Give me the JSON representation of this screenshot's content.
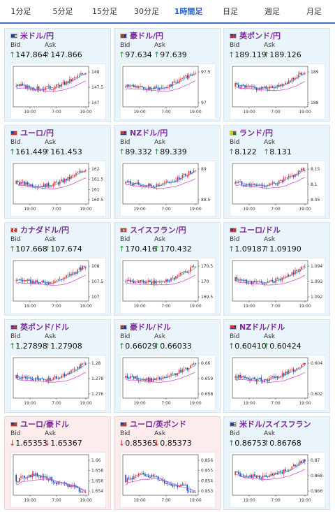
{
  "tabs": [
    {
      "label": "1分足",
      "active": false
    },
    {
      "label": "5分足",
      "active": false
    },
    {
      "label": "15分足",
      "active": false
    },
    {
      "label": "30分足",
      "active": false
    },
    {
      "label": "1時間足",
      "active": true
    },
    {
      "label": "日足",
      "active": false
    },
    {
      "label": "週足",
      "active": false
    },
    {
      "label": "月足",
      "active": false
    }
  ],
  "labels": {
    "bid": "Bid",
    "ask": "Ask"
  },
  "colors": {
    "up": "#2a8a3a",
    "down": "#d0312d",
    "pair": "#7b2b9b",
    "candle_up": "#e8322f",
    "candle_down": "#1a3fb0",
    "ma_short": "#2b9bd8",
    "ma_long": "#d24fd6"
  },
  "cards": [
    {
      "pair": "米ドル/円",
      "flag": "us",
      "bid": "147.864",
      "ask": "147.866",
      "dir": "up",
      "yticks": [
        "148",
        "147.5",
        "147"
      ],
      "xticks": [
        "19:00",
        "7:00",
        "19:00"
      ]
    },
    {
      "pair": "豪ドル/円",
      "flag": "au",
      "bid": "97.634",
      "ask": "97.639",
      "dir": "up",
      "yticks": [
        "97.5",
        "97"
      ],
      "xticks": [
        "19:00",
        "7:00",
        "19:00"
      ]
    },
    {
      "pair": "英ポンド/円",
      "flag": "uk",
      "bid": "189.119",
      "ask": "189.126",
      "dir": "up",
      "yticks": [
        "189",
        "188"
      ],
      "xticks": [
        "19:00",
        "7:00",
        "19:00"
      ]
    },
    {
      "pair": "ユーロ/円",
      "flag": "eu",
      "bid": "161.449",
      "ask": "161.453",
      "dir": "up",
      "yticks": [
        "162",
        "161.5",
        "161",
        "160.5"
      ],
      "xticks": [
        "19:00",
        "7:00",
        "19:00"
      ]
    },
    {
      "pair": "NZドル/円",
      "flag": "nz",
      "bid": "89.332",
      "ask": "89.339",
      "dir": "up",
      "yticks": [
        "89",
        "88.5"
      ],
      "xticks": [
        "19:00",
        "7:00",
        "19:00"
      ]
    },
    {
      "pair": "ランド/円",
      "flag": "za",
      "bid": "8.122",
      "ask": "8.131",
      "dir": "up",
      "yticks": [
        "8.15",
        "8.1",
        "8.05"
      ],
      "xticks": [
        "19:00",
        "7:00",
        "19:00"
      ]
    },
    {
      "pair": "カナダドル/円",
      "flag": "ca",
      "bid": "107.668",
      "ask": "107.674",
      "dir": "up",
      "yticks": [
        "108",
        "107.5",
        "107"
      ],
      "xticks": [
        "19:00",
        "7:00",
        "19:00"
      ]
    },
    {
      "pair": "スイスフラン/円",
      "flag": "ch",
      "bid": "170.416",
      "ask": "170.432",
      "dir": "up",
      "yticks": [
        "170.5",
        "170",
        "169.5"
      ],
      "xticks": [
        "19:00",
        "7:00",
        "19:00"
      ]
    },
    {
      "pair": "ユーロ/ドル",
      "flag": "eu",
      "bid": "1.09187",
      "ask": "1.09190",
      "dir": "up",
      "yticks": [
        "1.094",
        "1.093",
        "1.092"
      ],
      "xticks": [
        "19:00",
        "7:00",
        "19:00"
      ]
    },
    {
      "pair": "英ポンド/ドル",
      "flag": "uk",
      "bid": "1.27898",
      "ask": "1.27908",
      "dir": "up",
      "yticks": [
        "1.28",
        "1.278",
        "1.276"
      ],
      "xticks": [
        "19:00",
        "7:00",
        "19:00"
      ]
    },
    {
      "pair": "豪ドル/ドル",
      "flag": "au",
      "bid": "0.66029",
      "ask": "0.66033",
      "dir": "up",
      "yticks": [
        "0.66",
        "0.659",
        "0.658"
      ],
      "xticks": [
        "19:00",
        "7:00",
        "19:00"
      ]
    },
    {
      "pair": "NZドル/ドル",
      "flag": "nz",
      "bid": "0.60410",
      "ask": "0.60424",
      "dir": "up",
      "yticks": [
        "0.604",
        "0.602"
      ],
      "xticks": [
        "19:00",
        "7:00",
        "19:00"
      ]
    },
    {
      "pair": "ユーロ/豪ドル",
      "flag": "eu",
      "bid": "1.65353",
      "ask": "1.65367",
      "dir": "down",
      "yticks": [
        "1.66",
        "1.658",
        "1.656",
        "1.654"
      ],
      "xticks": [
        "19:00",
        "7:00",
        "19:00"
      ]
    },
    {
      "pair": "ユーロ/英ポンド",
      "flag": "eu",
      "bid": "0.85365",
      "ask": "0.85373",
      "dir": "down",
      "yticks": [
        "0.856",
        "0.855",
        "0.854",
        "0.853"
      ],
      "xticks": [
        "19:00",
        "7:00",
        "19:00"
      ]
    },
    {
      "pair": "米ドル/スイスフラン",
      "flag": "us",
      "bid": "0.86753",
      "ask": "0.86768",
      "dir": "up",
      "yticks": [
        "0.87",
        "0.868",
        "0.866"
      ],
      "xticks": [
        "19:00",
        "7:00",
        "19:00"
      ]
    }
  ]
}
